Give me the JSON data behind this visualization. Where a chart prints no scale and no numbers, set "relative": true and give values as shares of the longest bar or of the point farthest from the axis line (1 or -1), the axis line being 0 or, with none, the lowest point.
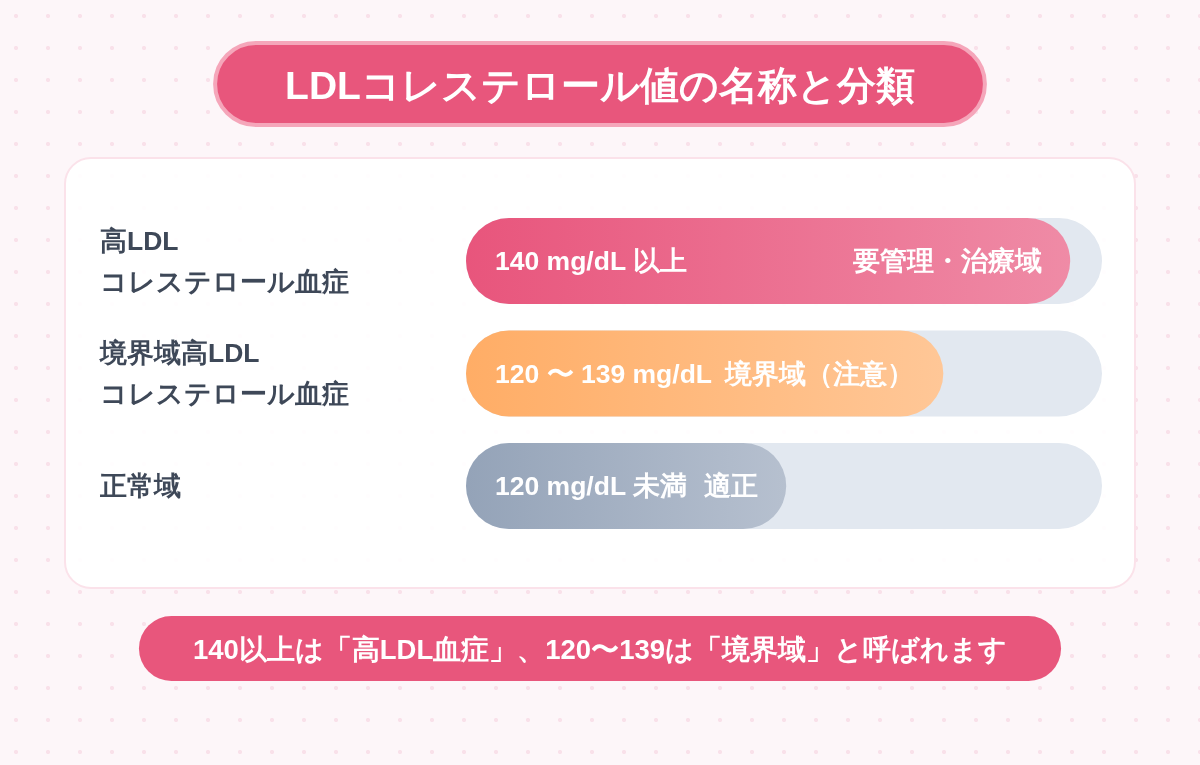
{
  "chart_data": {
    "type": "bar",
    "orientation": "horizontal",
    "relative": true,
    "title": "LDLコレステロール値の名称と分類",
    "categories": [
      "高LDL\nコレステロール血症",
      "境界域高LDL\nコレステロール血症",
      "正常域"
    ],
    "values": [
      1,
      0.79,
      0.53
    ],
    "colors": [
      "#e8557c",
      "#ffad66",
      "#94a3b8"
    ],
    "annotations": [
      {
        "text": "140 mg/dL 以上",
        "y": "高LDL\nコレステロール血症"
      },
      {
        "text": "要管理・治療域",
        "y": "高LDL\nコレステロール血症"
      },
      {
        "text": "120 〜 139 mg/dL",
        "y": "境界域高LDL\nコレステロール血症"
      },
      {
        "text": "境界域（注意）",
        "y": "境界域高LDL\nコレステロール血症"
      },
      {
        "text": "120 mg/dL 未満",
        "y": "正常域"
      },
      {
        "text": "適正",
        "y": "正常域"
      },
      "140以上は「高LDL血症」、120〜139は「境界域」と呼ばれます"
    ]
  }
}
